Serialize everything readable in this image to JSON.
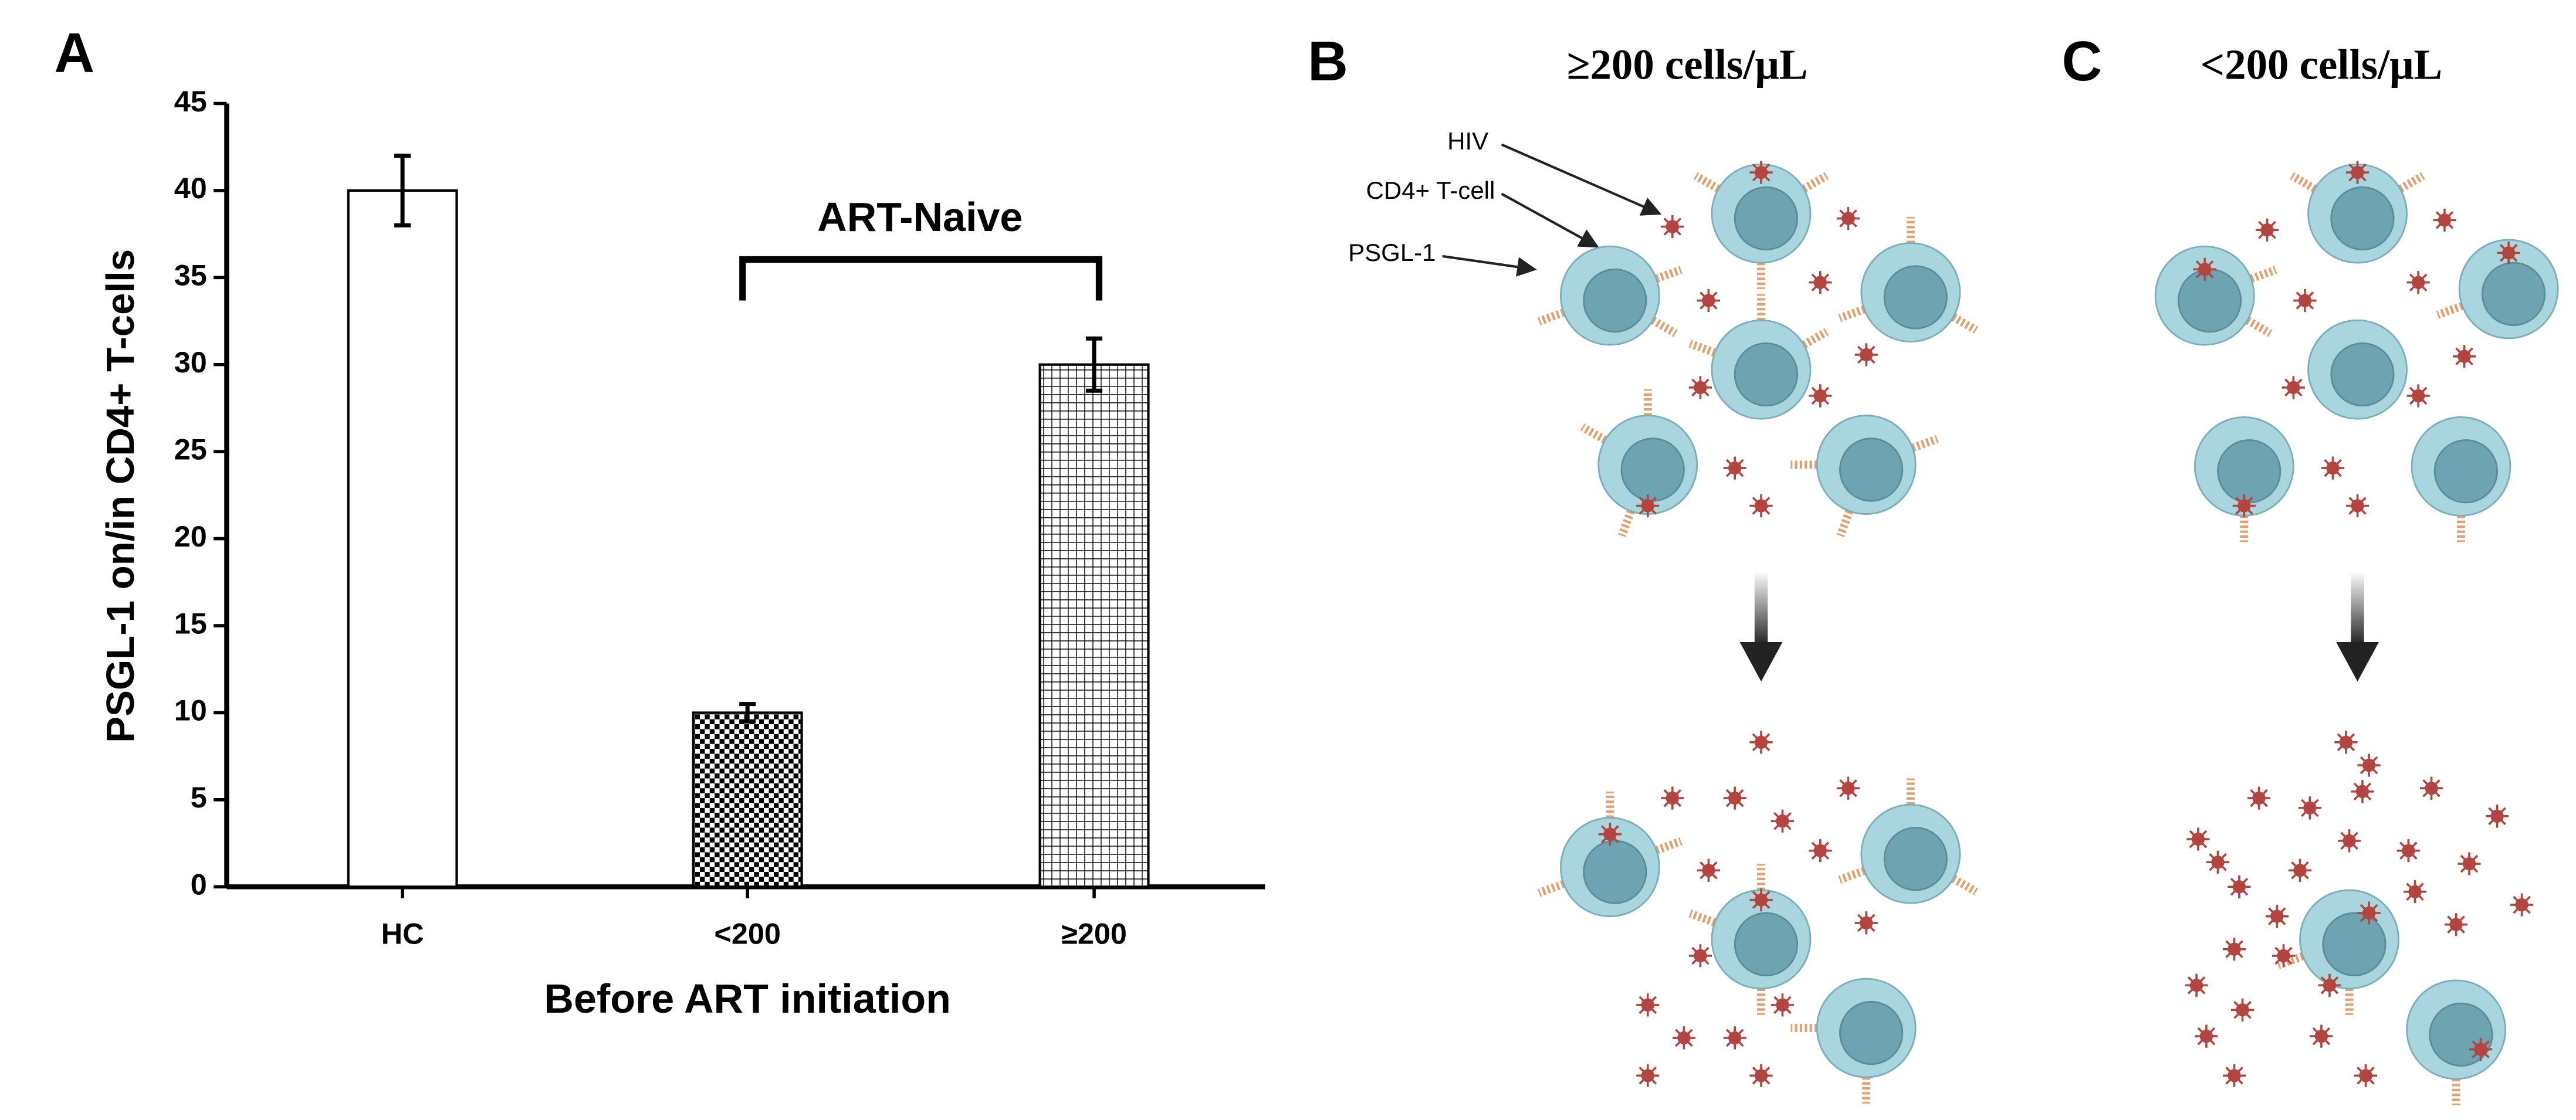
{
  "chart_data": {
    "type": "bar",
    "panel_label": "A",
    "ylabel": "PSGL-1 on/in CD4+ T-cells",
    "xlabel": "Before ART initiation",
    "categories": [
      "HC",
      "<200",
      "≥200"
    ],
    "values": [
      40,
      10,
      30
    ],
    "errors": [
      2,
      0.5,
      1.5
    ],
    "patterns": [
      "none",
      "checker",
      "grid"
    ],
    "edge_color": "#000000",
    "ylim": [
      0,
      45
    ],
    "yticks": [
      0,
      5,
      10,
      15,
      20,
      25,
      30,
      35,
      40,
      45
    ],
    "annotation": "ART-Naive"
  },
  "diagrams": [
    {
      "label": "B",
      "title": "≥200 cells/μL",
      "callouts": [
        "HIV",
        "CD4+ T-cell",
        "PSGL-1"
      ]
    },
    {
      "label": "C",
      "title": "<200 cells/μL"
    }
  ]
}
